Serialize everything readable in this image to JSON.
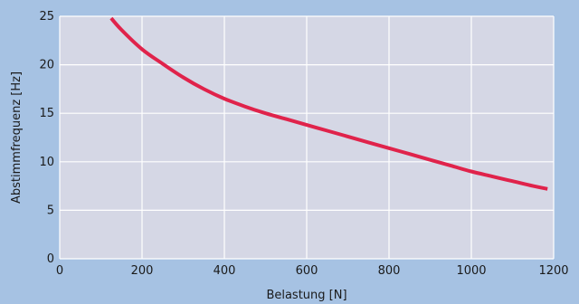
{
  "chart_data": {
    "type": "line",
    "title": "",
    "xlabel": "Belastung [N]",
    "ylabel": "Abstimmfrequenz [Hz]",
    "xlim": [
      0,
      1200
    ],
    "ylim": [
      0,
      25
    ],
    "x_ticks": [
      0,
      200,
      400,
      600,
      800,
      1000,
      1200
    ],
    "y_ticks": [
      0,
      5,
      10,
      15,
      20,
      25
    ],
    "grid": true,
    "legend": "none",
    "colors": {
      "background": "#a6c2e3",
      "plot_area": "#d5d7e5",
      "grid": "#ffffff",
      "line": "#e0234b"
    },
    "series": [
      {
        "x": [
          125,
          150,
          200,
          250,
          300,
          350,
          400,
          450,
          500,
          550,
          600,
          650,
          700,
          750,
          800,
          850,
          900,
          950,
          1000,
          1050,
          1100,
          1150,
          1185
        ],
        "y": [
          24.8,
          23.6,
          21.6,
          20.1,
          18.7,
          17.5,
          16.5,
          15.7,
          15.0,
          14.4,
          13.8,
          13.2,
          12.6,
          12.0,
          11.4,
          10.8,
          10.2,
          9.6,
          9.0,
          8.5,
          8.0,
          7.5,
          7.2
        ]
      }
    ]
  }
}
